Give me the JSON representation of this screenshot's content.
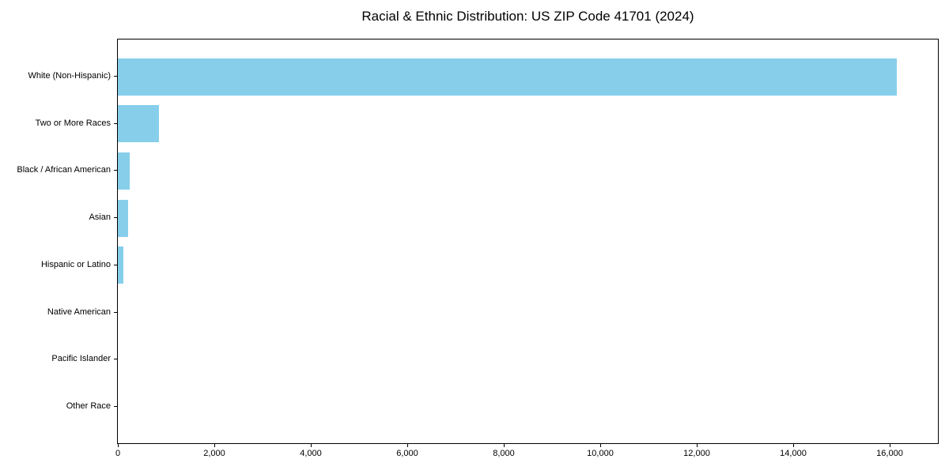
{
  "figure": {
    "background": "#ffffff"
  },
  "chart_data": {
    "type": "bar",
    "orientation": "horizontal",
    "title": "Racial & Ethnic Distribution: US ZIP Code 41701 (2024)",
    "categories": [
      "White (Non-Hispanic)",
      "Two or More Races",
      "Black / African American",
      "Asian",
      "Hispanic or Latino",
      "Native American",
      "Pacific Islander",
      "Other Race"
    ],
    "values": [
      16150,
      860,
      240,
      210,
      110,
      0,
      0,
      0
    ],
    "xlabel": "",
    "ylabel": "",
    "xlim": [
      0,
      17000
    ],
    "xticks": [
      0,
      2000,
      4000,
      6000,
      8000,
      10000,
      12000,
      14000,
      16000
    ],
    "xtick_labels": [
      "0",
      "2,000",
      "4,000",
      "6,000",
      "8,000",
      "10,000",
      "12,000",
      "14,000",
      "16,000"
    ],
    "bar_color": "#87CEEB",
    "axis_color": "#000000",
    "text_color": "#000000",
    "grid": false,
    "legend": null
  }
}
